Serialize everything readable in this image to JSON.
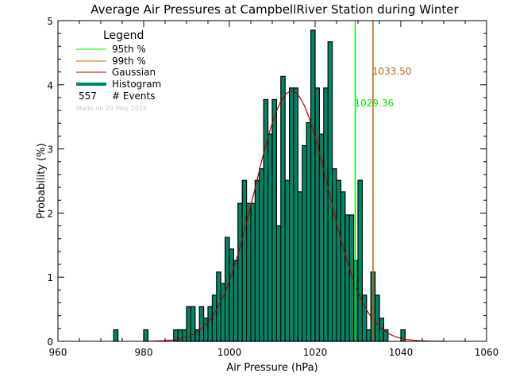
{
  "chart_data": {
    "type": "bar",
    "title": "Average Air Pressures at CampbellRiver Station during Winter",
    "xlabel": "Air Pressure (hPa)",
    "ylabel": "Probability (%)",
    "xlim": [
      960,
      1060
    ],
    "ylim": [
      0,
      5
    ],
    "xticks": [
      960,
      980,
      1000,
      1020,
      1040,
      1060
    ],
    "yticks": [
      0,
      1,
      2,
      3,
      4,
      5
    ],
    "grid": false,
    "bin_width": 1,
    "bins": [
      973,
      980,
      987,
      988,
      989,
      990,
      991,
      992,
      993,
      994,
      995,
      996,
      997,
      998,
      999,
      1000,
      1001,
      1002,
      1003,
      1004,
      1005,
      1006,
      1007,
      1008,
      1009,
      1010,
      1011,
      1012,
      1013,
      1014,
      1015,
      1016,
      1017,
      1018,
      1019,
      1020,
      1021,
      1022,
      1023,
      1024,
      1025,
      1026,
      1027,
      1028,
      1029,
      1030,
      1031,
      1032,
      1033,
      1034,
      1035,
      1036,
      1040
    ],
    "values": [
      0.18,
      0.18,
      0.18,
      0.18,
      0.18,
      0.54,
      0.54,
      0.18,
      0.54,
      0.36,
      0.54,
      0.72,
      1.08,
      0.9,
      1.62,
      1.44,
      1.26,
      2.15,
      2.51,
      2.15,
      2.15,
      2.51,
      2.69,
      3.77,
      3.23,
      3.77,
      1.8,
      4.13,
      2.51,
      3.95,
      3.95,
      2.33,
      3.05,
      3.41,
      4.85,
      3.95,
      3.23,
      3.95,
      4.67,
      2.69,
      2.51,
      2.33,
      1.97,
      1.97,
      1.26,
      2.51,
      0.72,
      0.18,
      1.08,
      0.72,
      0.36,
      0.18,
      0.18
    ],
    "gaussian": {
      "mean": 1014.5,
      "sigma": 8.6,
      "peak": 3.9,
      "range": [
        980,
        1050
      ]
    },
    "percentiles": [
      {
        "name": "95th %",
        "value": 1029.36,
        "label": "1029.36",
        "color": "#00ee00"
      },
      {
        "name": "99th %",
        "value": 1033.5,
        "label": "1033.50",
        "color": "#b8651a"
      }
    ],
    "legend": {
      "title": "Legend",
      "placement": "top-left",
      "items": [
        {
          "label": "95th %",
          "color": "#00ee00"
        },
        {
          "label": "99th %",
          "color": "#b8651a"
        },
        {
          "label": "Gaussian",
          "color": "#aa0000"
        },
        {
          "label": "Histogram",
          "color": "#008866"
        }
      ],
      "events_count": "557",
      "events_label": "# Events",
      "made_on": "Made on 29 May 2025"
    },
    "colors": {
      "histogram": "#008866",
      "gaussian": "#aa0000"
    }
  }
}
